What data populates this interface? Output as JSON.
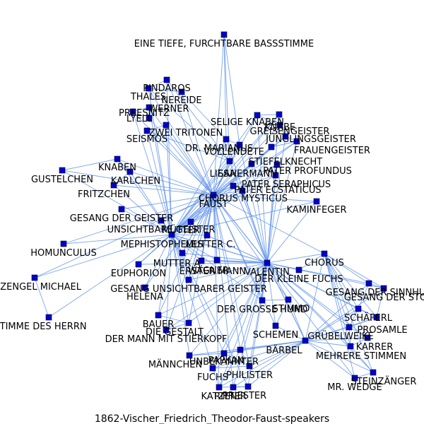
{
  "caption": "1862-Vischer_Friedrich_Theodor-Faust-speakers",
  "colors": {
    "edge": "#6495ed",
    "node": "#0000cd",
    "text": "#000000",
    "background": "#ffffff"
  },
  "nodes": [
    {
      "id": "bass",
      "label": "EINE TIEFE, FURCHTBARE BASSSTIMME"
    },
    {
      "id": "pindaros",
      "label": "PINDAROS"
    },
    {
      "id": "thales",
      "label": "THALES"
    },
    {
      "id": "nereide",
      "label": "NEREIDE"
    },
    {
      "id": "preesnitz",
      "label": "PREESNITZ"
    },
    {
      "id": "werner",
      "label": "WERNER"
    },
    {
      "id": "lyell",
      "label": "LYELL"
    },
    {
      "id": "tritonen",
      "label": "ZWEI TRITONEN"
    },
    {
      "id": "seismos",
      "label": "SEISMOS"
    },
    {
      "id": "selige",
      "label": "SELIGE KNABEN"
    },
    {
      "id": "greis",
      "label": "GREISENGEISTER"
    },
    {
      "id": "knabe",
      "label": "KNABE"
    },
    {
      "id": "juengling",
      "label": "JÜNGLINGSGEISTER"
    },
    {
      "id": "marianus",
      "label": "DR. MARIANUS"
    },
    {
      "id": "stiefel",
      "label": "STIEFELKNECHT"
    },
    {
      "id": "frauengeister",
      "label": "FRAUENGEISTER"
    },
    {
      "id": "vollendete",
      "label": "VOLLENDETE"
    },
    {
      "id": "knaben",
      "label": "KNABEN"
    },
    {
      "id": "gustelchen",
      "label": "GUSTELCHEN"
    },
    {
      "id": "karlchen",
      "label": "KARLCHEN"
    },
    {
      "id": "fritzchen",
      "label": "FRITZCHEN"
    },
    {
      "id": "liesa",
      "label": "LIESA"
    },
    {
      "id": "sahermann",
      "label": "SAHERMANN"
    },
    {
      "id": "profundus",
      "label": "PATER PROFUNDUS"
    },
    {
      "id": "seraphicus",
      "label": "PATER SERAPHICUS"
    },
    {
      "id": "ecstaticus",
      "label": "PATER ECSTATICUS"
    },
    {
      "id": "chorusm",
      "label": "CHORUS MYSTICUS"
    },
    {
      "id": "faust",
      "label": "FAUST"
    },
    {
      "id": "kaminfeger",
      "label": "KAMINFEGER"
    },
    {
      "id": "gesangg",
      "label": "GESANG DER GEISTER"
    },
    {
      "id": "unsichtbare",
      "label": "UNSICHTBARE GEISTER"
    },
    {
      "id": "muetter",
      "label": "MÜTTER"
    },
    {
      "id": "homunculus",
      "label": "HOMUNCULUS"
    },
    {
      "id": "mephisto",
      "label": "MEPHISTOPHELES"
    },
    {
      "id": "mutterc",
      "label": "MUTTER C."
    },
    {
      "id": "muttera",
      "label": "MUTTER A."
    },
    {
      "id": "chorus",
      "label": "CHORUS"
    },
    {
      "id": "engel",
      "label": "ERZENGEL MICHAEL"
    },
    {
      "id": "euphorion",
      "label": "EUPHORION"
    },
    {
      "id": "wagner",
      "label": "WAGNER"
    },
    {
      "id": "erster",
      "label": "ERSTER MANN"
    },
    {
      "id": "valentin",
      "label": "VALENTIN"
    },
    {
      "id": "fuchs",
      "label": "DER KLEINE FUCHS"
    },
    {
      "id": "sinnhub",
      "label": "GESANG DER SINNHUB"
    },
    {
      "id": "stoppf",
      "label": "GESANG DER STOPPF"
    },
    {
      "id": "gesangu",
      "label": "GESANG UNSICHTBARER GEISTER"
    },
    {
      "id": "helena",
      "label": "HELENA"
    },
    {
      "id": "grosse",
      "label": "DER GROSSE HUND"
    },
    {
      "id": "stimme",
      "label": "STIMME DES HERRN"
    },
    {
      "id": "stimmo",
      "label": "STIMMO"
    },
    {
      "id": "schaeferl",
      "label": "SCHÄFERL"
    },
    {
      "id": "bauer",
      "label": "BAUER"
    },
    {
      "id": "gestalt",
      "label": "DIE GESTALT"
    },
    {
      "id": "prosamle",
      "label": "PROSAMLE"
    },
    {
      "id": "schemen",
      "label": "SCHEMEN"
    },
    {
      "id": "stierkopf",
      "label": "DER MANN MIT STIERKOPF"
    },
    {
      "id": "gruebelweike",
      "label": "GRÜBELWEIKE"
    },
    {
      "id": "barbel",
      "label": "BÄRBEL"
    },
    {
      "id": "karrer",
      "label": "KARRER"
    },
    {
      "id": "mehrere",
      "label": "MEHRERE STIMMEN"
    },
    {
      "id": "maennchen",
      "label": "MÄNNCHEN"
    },
    {
      "id": "unbekannter",
      "label": "UNBEKANNTER"
    },
    {
      "id": "papkan",
      "label": "PAPKAN"
    },
    {
      "id": "philister",
      "label": "PHILISTER"
    },
    {
      "id": "steinzaenger",
      "label": "STEINZÄNGER"
    },
    {
      "id": "wedge",
      "label": "MR. WEDGE"
    },
    {
      "id": "fuchs2",
      "label": "FUCHS"
    },
    {
      "id": "katzen",
      "label": "KATZEN"
    },
    {
      "id": "priester",
      "label": "PRIESTER"
    },
    {
      "id": "ritter",
      "label": "RITTER"
    }
  ],
  "edges": [
    [
      "bass",
      "marianus"
    ],
    [
      "bass",
      "faust"
    ],
    [
      "bass",
      "liesa"
    ],
    [
      "bass",
      "vollendete"
    ],
    [
      "pindaros",
      "faust"
    ],
    [
      "thales",
      "faust"
    ],
    [
      "nereide",
      "faust"
    ],
    [
      "preesnitz",
      "faust"
    ],
    [
      "werner",
      "faust"
    ],
    [
      "lyell",
      "faust"
    ],
    [
      "tritonen",
      "faust"
    ],
    [
      "seismos",
      "faust"
    ],
    [
      "pindaros",
      "mephisto"
    ],
    [
      "thales",
      "mephisto"
    ],
    [
      "werner",
      "mephisto"
    ],
    [
      "preesnitz",
      "mephisto"
    ],
    [
      "seismos",
      "mephisto"
    ],
    [
      "tritonen",
      "mephisto"
    ],
    [
      "thales",
      "nereide"
    ],
    [
      "pindaros",
      "thales"
    ],
    [
      "werner",
      "lyell"
    ],
    [
      "preesnitz",
      "werner"
    ],
    [
      "tritonen",
      "seismos"
    ],
    [
      "pindaros",
      "liesa"
    ],
    [
      "thales",
      "liesa"
    ],
    [
      "nereide",
      "marianus"
    ],
    [
      "seismos",
      "liesa"
    ],
    [
      "selige",
      "faust"
    ],
    [
      "greis",
      "faust"
    ],
    [
      "knabe",
      "faust"
    ],
    [
      "juengling",
      "faust"
    ],
    [
      "marianus",
      "faust"
    ],
    [
      "stiefel",
      "faust"
    ],
    [
      "frauengeister",
      "faust"
    ],
    [
      "vollendete",
      "faust"
    ],
    [
      "selige",
      "mephisto"
    ],
    [
      "greis",
      "mephisto"
    ],
    [
      "juengling",
      "mephisto"
    ],
    [
      "marianus",
      "mephisto"
    ],
    [
      "stiefel",
      "mephisto"
    ],
    [
      "frauengeister",
      "mephisto"
    ],
    [
      "vollendete",
      "mephisto"
    ],
    [
      "selige",
      "valentin"
    ],
    [
      "greis",
      "valentin"
    ],
    [
      "juengling",
      "valentin"
    ],
    [
      "marianus",
      "valentin"
    ],
    [
      "frauengeister",
      "valentin"
    ],
    [
      "vollendete",
      "valentin"
    ],
    [
      "selige",
      "greis"
    ],
    [
      "greis",
      "juengling"
    ],
    [
      "knabe",
      "juengling"
    ],
    [
      "marianus",
      "vollendete"
    ],
    [
      "stiefel",
      "frauengeister"
    ],
    [
      "juengling",
      "frauengeister"
    ],
    [
      "selige",
      "knabe"
    ],
    [
      "knaben",
      "faust"
    ],
    [
      "gustelchen",
      "faust"
    ],
    [
      "karlchen",
      "faust"
    ],
    [
      "fritzchen",
      "faust"
    ],
    [
      "knaben",
      "mephisto"
    ],
    [
      "gustelchen",
      "mephisto"
    ],
    [
      "karlchen",
      "mephisto"
    ],
    [
      "fritzchen",
      "mephisto"
    ],
    [
      "knaben",
      "karlchen"
    ],
    [
      "gustelchen",
      "knaben"
    ],
    [
      "fritzchen",
      "karlchen"
    ],
    [
      "liesa",
      "faust"
    ],
    [
      "sahermann",
      "faust"
    ],
    [
      "profundus",
      "faust"
    ],
    [
      "seraphicus",
      "faust"
    ],
    [
      "ecstaticus",
      "faust"
    ],
    [
      "chorusm",
      "faust"
    ],
    [
      "kaminfeger",
      "faust"
    ],
    [
      "liesa",
      "mephisto"
    ],
    [
      "sahermann",
      "mephisto"
    ],
    [
      "profundus",
      "mephisto"
    ],
    [
      "seraphicus",
      "mephisto"
    ],
    [
      "ecstaticus",
      "mephisto"
    ],
    [
      "chorusm",
      "mephisto"
    ],
    [
      "kaminfeger",
      "mephisto"
    ],
    [
      "liesa",
      "valentin"
    ],
    [
      "sahermann",
      "valentin"
    ],
    [
      "profundus",
      "valentin"
    ],
    [
      "seraphicus",
      "valentin"
    ],
    [
      "ecstaticus",
      "valentin"
    ],
    [
      "chorusm",
      "valentin"
    ],
    [
      "kaminfeger",
      "valentin"
    ],
    [
      "gesangg",
      "faust"
    ],
    [
      "unsichtbare",
      "faust"
    ],
    [
      "muetter",
      "faust"
    ],
    [
      "homunculus",
      "faust"
    ],
    [
      "mutterc",
      "faust"
    ],
    [
      "muttera",
      "faust"
    ],
    [
      "gesangg",
      "mephisto"
    ],
    [
      "unsichtbare",
      "mephisto"
    ],
    [
      "muetter",
      "mephisto"
    ],
    [
      "homunculus",
      "mephisto"
    ],
    [
      "mutterc",
      "mephisto"
    ],
    [
      "muttera",
      "mephisto"
    ],
    [
      "mephisto",
      "faust"
    ],
    [
      "mephisto",
      "valentin"
    ],
    [
      "faust",
      "valentin"
    ],
    [
      "faust",
      "wagner"
    ],
    [
      "mephisto",
      "wagner"
    ],
    [
      "wagner",
      "valentin"
    ],
    [
      "erster",
      "valentin"
    ],
    [
      "erster",
      "mephisto"
    ],
    [
      "erster",
      "faust"
    ],
    [
      "euphorion",
      "faust"
    ],
    [
      "euphorion",
      "mephisto"
    ],
    [
      "helena",
      "faust"
    ],
    [
      "helena",
      "mephisto"
    ],
    [
      "gesangu",
      "faust"
    ],
    [
      "gesangu",
      "mephisto"
    ],
    [
      "gesangu",
      "valentin"
    ],
    [
      "engel",
      "mephisto"
    ],
    [
      "engel",
      "stimme"
    ],
    [
      "stimme",
      "mephisto"
    ],
    [
      "engel",
      "faust"
    ],
    [
      "chorus",
      "valentin"
    ],
    [
      "chorus",
      "faust"
    ],
    [
      "chorus",
      "fuchs"
    ],
    [
      "chorus",
      "sinnhub"
    ],
    [
      "chorus",
      "stoppf"
    ],
    [
      "chorus",
      "schaeferl"
    ],
    [
      "chorus",
      "prosamle"
    ],
    [
      "chorus",
      "gruebelweike"
    ],
    [
      "chorus",
      "karrer"
    ],
    [
      "chorus",
      "mehrere"
    ],
    [
      "chorus",
      "steinzaenger"
    ],
    [
      "chorus",
      "wedge"
    ],
    [
      "chorus",
      "barbel"
    ],
    [
      "fuchs",
      "valentin"
    ],
    [
      "sinnhub",
      "valentin"
    ],
    [
      "stoppf",
      "valentin"
    ],
    [
      "grosse",
      "valentin"
    ],
    [
      "stimmo",
      "valentin"
    ],
    [
      "schaeferl",
      "valentin"
    ],
    [
      "prosamle",
      "valentin"
    ],
    [
      "gruebelweike",
      "valentin"
    ],
    [
      "barbel",
      "valentin"
    ],
    [
      "karrer",
      "valentin"
    ],
    [
      "mehrere",
      "valentin"
    ],
    [
      "schemen",
      "valentin"
    ],
    [
      "steinzaenger",
      "valentin"
    ],
    [
      "wedge",
      "valentin"
    ],
    [
      "grosse",
      "faust"
    ],
    [
      "grosse",
      "mephisto"
    ],
    [
      "stimmo",
      "faust"
    ],
    [
      "schemen",
      "faust"
    ],
    [
      "bauer",
      "faust"
    ],
    [
      "bauer",
      "mephisto"
    ],
    [
      "bauer",
      "valentin"
    ],
    [
      "gestalt",
      "faust"
    ],
    [
      "gestalt",
      "mephisto"
    ],
    [
      "gestalt",
      "valentin"
    ],
    [
      "stierkopf",
      "faust"
    ],
    [
      "stierkopf",
      "mephisto"
    ],
    [
      "stierkopf",
      "valentin"
    ],
    [
      "maennchen",
      "valentin"
    ],
    [
      "unbekannter",
      "valentin"
    ],
    [
      "papkan",
      "valentin"
    ],
    [
      "philister",
      "valentin"
    ],
    [
      "fuchs2",
      "valentin"
    ],
    [
      "katzen",
      "valentin"
    ],
    [
      "priester",
      "valentin"
    ],
    [
      "ritter",
      "valentin"
    ],
    [
      "maennchen",
      "mephisto"
    ],
    [
      "unbekannter",
      "mephisto"
    ],
    [
      "papkan",
      "faust"
    ],
    [
      "philister",
      "faust"
    ],
    [
      "fuchs2",
      "mephisto"
    ],
    [
      "katzen",
      "faust"
    ],
    [
      "priester",
      "mephisto"
    ],
    [
      "ritter",
      "faust"
    ],
    [
      "barbel",
      "unbekannter"
    ],
    [
      "barbel",
      "papkan"
    ],
    [
      "barbel",
      "philister"
    ],
    [
      "barbel",
      "fuchs2"
    ],
    [
      "barbel",
      "katzen"
    ],
    [
      "barbel",
      "priester"
    ],
    [
      "barbel",
      "ritter"
    ],
    [
      "barbel",
      "maennchen"
    ],
    [
      "barbel",
      "gruebelweike"
    ],
    [
      "barbel",
      "karrer"
    ],
    [
      "barbel",
      "mehrere"
    ],
    [
      "barbel",
      "steinzaenger"
    ],
    [
      "barbel",
      "wedge"
    ],
    [
      "barbel",
      "schaeferl"
    ],
    [
      "barbel",
      "prosamle"
    ],
    [
      "barbel",
      "stimmo"
    ],
    [
      "barbel",
      "sinnhub"
    ],
    [
      "barbel",
      "stoppf"
    ],
    [
      "gruebelweike",
      "karrer"
    ],
    [
      "gruebelweike",
      "mehrere"
    ],
    [
      "gruebelweike",
      "schaeferl"
    ],
    [
      "gruebelweike",
      "prosamle"
    ],
    [
      "schaeferl",
      "prosamle"
    ],
    [
      "karrer",
      "mehrere"
    ],
    [
      "mehrere",
      "steinzaenger"
    ],
    [
      "steinzaenger",
      "wedge"
    ],
    [
      "sinnhub",
      "stoppf"
    ],
    [
      "sinnhub",
      "schaeferl"
    ],
    [
      "stoppf",
      "prosamle"
    ],
    [
      "unbekannter",
      "papkan"
    ],
    [
      "papkan",
      "philister"
    ],
    [
      "philister",
      "fuchs2"
    ],
    [
      "fuchs2",
      "katzen"
    ],
    [
      "katzen",
      "priester"
    ],
    [
      "priester",
      "ritter"
    ],
    [
      "unbekannter",
      "philister"
    ],
    [
      "papkan",
      "katzen"
    ],
    [
      "maennchen",
      "unbekannter"
    ],
    [
      "grosse",
      "stimmo"
    ],
    [
      "stimmo",
      "schemen"
    ],
    [
      "schemen",
      "barbel"
    ],
    [
      "bauer",
      "gestalt"
    ],
    [
      "gestalt",
      "stierkopf"
    ],
    [
      "valentin",
      "faust"
    ],
    [
      "valentin",
      "mephisto"
    ],
    [
      "valentin",
      "mutterc"
    ],
    [
      "valentin",
      "muttera"
    ],
    [
      "valentin",
      "erster"
    ],
    [
      "valentin",
      "euphorion"
    ]
  ],
  "heavy_edges": [
    [
      "faust",
      "mephisto"
    ],
    [
      "faust",
      "valentin"
    ],
    [
      "mephisto",
      "valentin"
    ],
    [
      "liesa",
      "faust"
    ],
    [
      "marianus",
      "faust"
    ],
    [
      "barbel",
      "valentin"
    ],
    [
      "gesangu",
      "faust"
    ],
    [
      "muttera",
      "faust"
    ],
    [
      "mutterc",
      "valentin"
    ],
    [
      "chorusm",
      "valentin"
    ],
    [
      "wagner",
      "faust"
    ],
    [
      "erster",
      "faust"
    ]
  ]
}
